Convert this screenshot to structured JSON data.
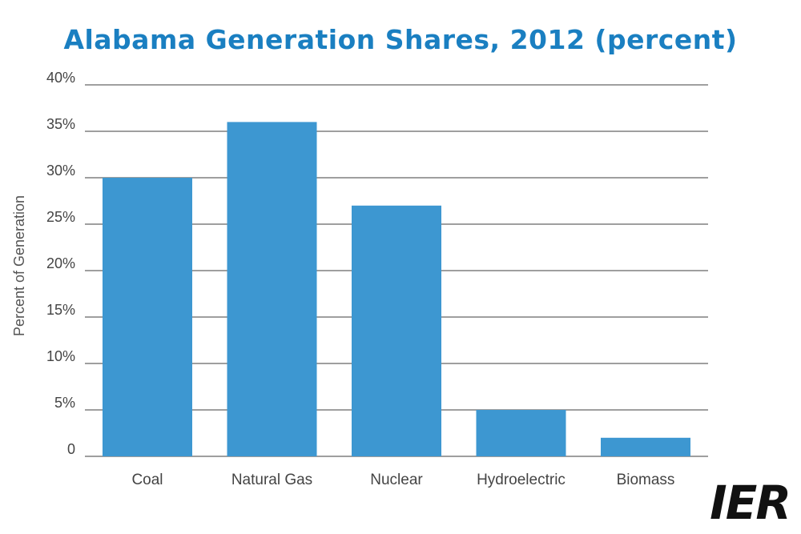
{
  "colors": {
    "title": "#1a7fc1",
    "bar": "#3d97d1",
    "grid": "#666666",
    "text": "#444444",
    "logo": "#111111"
  },
  "logo": {
    "text": "IER"
  },
  "chart_data": {
    "type": "bar",
    "title": "Alabama Generation Shares, 2012 (percent)",
    "xlabel": "",
    "ylabel": "Percent of Generation",
    "categories": [
      "Coal",
      "Natural Gas",
      "Nuclear",
      "Hydroelectric",
      "Biomass"
    ],
    "values": [
      30,
      36,
      27,
      5,
      2
    ],
    "ylim": [
      0,
      40
    ],
    "yticks": [
      {
        "value": 0,
        "label": "0"
      },
      {
        "value": 5,
        "label": "5%"
      },
      {
        "value": 10,
        "label": "10%"
      },
      {
        "value": 15,
        "label": "15%"
      },
      {
        "value": 20,
        "label": "20%"
      },
      {
        "value": 25,
        "label": "25%"
      },
      {
        "value": 30,
        "label": "30%"
      },
      {
        "value": 35,
        "label": "35%"
      },
      {
        "value": 40,
        "label": "40%"
      }
    ],
    "grid": true,
    "legend": "none"
  }
}
